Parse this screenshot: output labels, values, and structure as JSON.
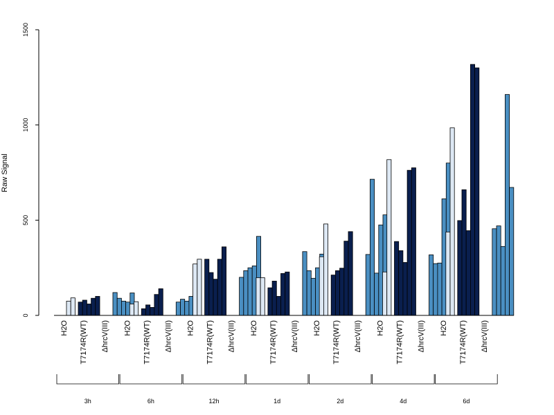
{
  "chart_data": {
    "type": "bar",
    "ylabel": "Raw Signal",
    "ylim": [
      0,
      1500
    ],
    "yticks": [
      0,
      500,
      1000,
      1500
    ],
    "timepoints": [
      "3h",
      "6h",
      "12h",
      "1d",
      "2d",
      "4d",
      "6d"
    ],
    "groups": [
      {
        "label": "H2O",
        "color": "#dde8f4"
      },
      {
        "label": "T7174R(WT)",
        "color": "#0a1f4e"
      },
      {
        "label": "ΔhrcV(III)",
        "color": "#4a8fc2"
      }
    ],
    "values": [
      [
        [
          75,
          92
        ],
        [
          70,
          80,
          60,
          90,
          100
        ],
        [
          120,
          90,
          75,
          70,
          118
        ]
      ],
      [
        [
          60,
          72
        ],
        [
          35,
          55,
          42,
          110,
          140
        ],
        [
          70,
          85,
          75,
          100,
          135
        ]
      ],
      [
        [
          270,
          295
        ],
        [
          295,
          225,
          190,
          295,
          360
        ],
        [
          200,
          235,
          250,
          260,
          415
        ]
      ],
      [
        [
          198,
          198
        ],
        [
          145,
          180,
          100,
          220,
          228
        ],
        [
          335,
          235,
          195,
          250,
          322
        ]
      ],
      [
        [
          308,
          480
        ],
        [
          212,
          235,
          248,
          390,
          440
        ],
        [
          320,
          715,
          222,
          475,
          528
        ]
      ],
      [
        [
          228,
          818
        ],
        [
          388,
          340,
          278,
          762,
          775
        ],
        [
          318,
          272,
          275,
          612,
          800
        ]
      ],
      [
        [
          438,
          985
        ],
        [
          498,
          660,
          445,
          1318,
          1300
        ],
        [
          455,
          470,
          362,
          1160,
          672
        ]
      ]
    ]
  }
}
